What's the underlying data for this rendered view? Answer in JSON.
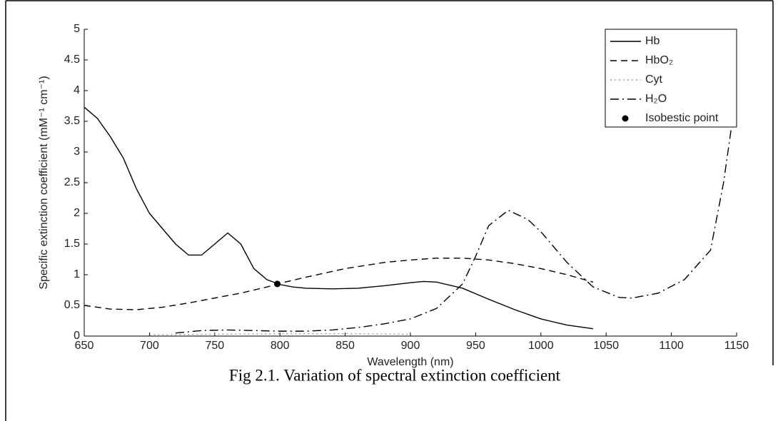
{
  "chart_data": {
    "type": "line",
    "x_label": "Wavelength (nm)",
    "y_label": "Specific extinction coefficient (mM⁻¹ cm⁻¹)",
    "caption": "Fig 2.1. Variation of spectral extinction coefficient",
    "xlim": [
      650,
      1150
    ],
    "ylim": [
      0,
      5
    ],
    "xticks": [
      650,
      700,
      750,
      800,
      850,
      900,
      950,
      1000,
      1050,
      1100,
      1150
    ],
    "yticks": [
      0,
      0.5,
      1,
      1.5,
      2,
      2.5,
      3,
      3.5,
      4,
      4.5,
      5
    ],
    "legend": "upper right",
    "series": [
      {
        "name": "Hb",
        "color": "#000000",
        "style": "solid",
        "x": [
          650,
          660,
          670,
          680,
          690,
          700,
          710,
          720,
          730,
          740,
          750,
          760,
          770,
          780,
          790,
          800,
          810,
          820,
          840,
          860,
          880,
          900,
          910,
          920,
          940,
          960,
          980,
          1000,
          1020,
          1040
        ],
        "values": [
          3.73,
          3.55,
          3.25,
          2.9,
          2.4,
          2.0,
          1.75,
          1.5,
          1.32,
          1.32,
          1.5,
          1.68,
          1.5,
          1.1,
          0.92,
          0.84,
          0.8,
          0.78,
          0.77,
          0.78,
          0.82,
          0.87,
          0.89,
          0.88,
          0.78,
          0.6,
          0.43,
          0.28,
          0.18,
          0.12
        ]
      },
      {
        "name": "HbO₂",
        "color": "#000000",
        "style": "dashed",
        "x": [
          650,
          670,
          690,
          710,
          730,
          750,
          770,
          790,
          800,
          820,
          850,
          880,
          900,
          920,
          940,
          960,
          980,
          1000,
          1020,
          1040
        ],
        "values": [
          0.5,
          0.44,
          0.43,
          0.47,
          0.54,
          0.62,
          0.7,
          0.8,
          0.86,
          0.96,
          1.1,
          1.2,
          1.24,
          1.27,
          1.27,
          1.24,
          1.18,
          1.1,
          1.0,
          0.88
        ]
      },
      {
        "name": "Cyt",
        "color": "#999999",
        "style": "dotted",
        "x": [
          700,
          750,
          800,
          850,
          900
        ],
        "values": [
          0.02,
          0.03,
          0.04,
          0.04,
          0.03
        ]
      },
      {
        "name": "H₂O",
        "color": "#000000",
        "style": "dashdot",
        "x": [
          720,
          740,
          760,
          780,
          800,
          820,
          840,
          860,
          880,
          900,
          920,
          940,
          950,
          960,
          975,
          990,
          1000,
          1020,
          1040,
          1060,
          1070,
          1090,
          1110,
          1130,
          1140,
          1150
        ],
        "values": [
          0.05,
          0.09,
          0.1,
          0.09,
          0.08,
          0.08,
          0.1,
          0.14,
          0.2,
          0.28,
          0.45,
          0.85,
          1.3,
          1.8,
          2.05,
          1.9,
          1.7,
          1.2,
          0.8,
          0.63,
          0.62,
          0.7,
          0.92,
          1.4,
          2.5,
          4.0
        ]
      },
      {
        "name": "Isobestic point",
        "color": "#000000",
        "style": "marker",
        "x": [
          798
        ],
        "values": [
          0.85
        ]
      }
    ]
  }
}
